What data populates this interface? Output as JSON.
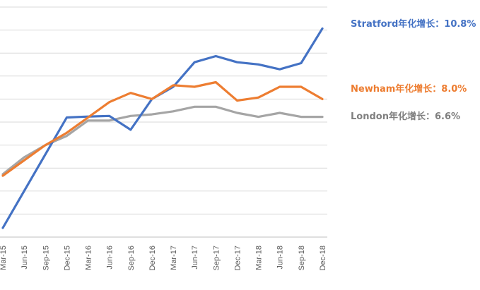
{
  "chart_data": {
    "type": "line",
    "title": "",
    "xlabel": "",
    "ylabel": "",
    "grid": true,
    "legend": "right",
    "categories": [
      "Mar-15",
      "Jun-15",
      "Sep-15",
      "Dec-15",
      "Mar-16",
      "Jun-16",
      "Sep-16",
      "Dec-16",
      "Mar-17",
      "Jun-17",
      "Sep-17",
      "Dec-17",
      "Mar-18",
      "Jun-18",
      "Sep-18",
      "Dec-18"
    ],
    "series": [
      {
        "name": "Stratford年化增长：10.8%",
        "color": "#4472C4",
        "values": [
          38,
          50,
          62,
          74,
          74.3,
          74.5,
          70,
          80,
          84,
          92,
          94,
          92,
          91.3,
          89.7,
          91.7,
          103
        ]
      },
      {
        "name": "Newham年化增长：8.0%",
        "color": "#ED7D31",
        "values": [
          55,
          60,
          65,
          69,
          74,
          79,
          82,
          80,
          84.5,
          84,
          85.5,
          79.5,
          80.5,
          84,
          84,
          80
        ]
      },
      {
        "name": "London年化增长：6.6%",
        "color": "#A5A5A5",
        "values": [
          55.5,
          61,
          65,
          68,
          73,
          73,
          74.5,
          75,
          76,
          77.5,
          77.5,
          75.5,
          74.2,
          75.5,
          74.2,
          74.2
        ]
      }
    ],
    "ylim": [
      35,
      110
    ]
  }
}
